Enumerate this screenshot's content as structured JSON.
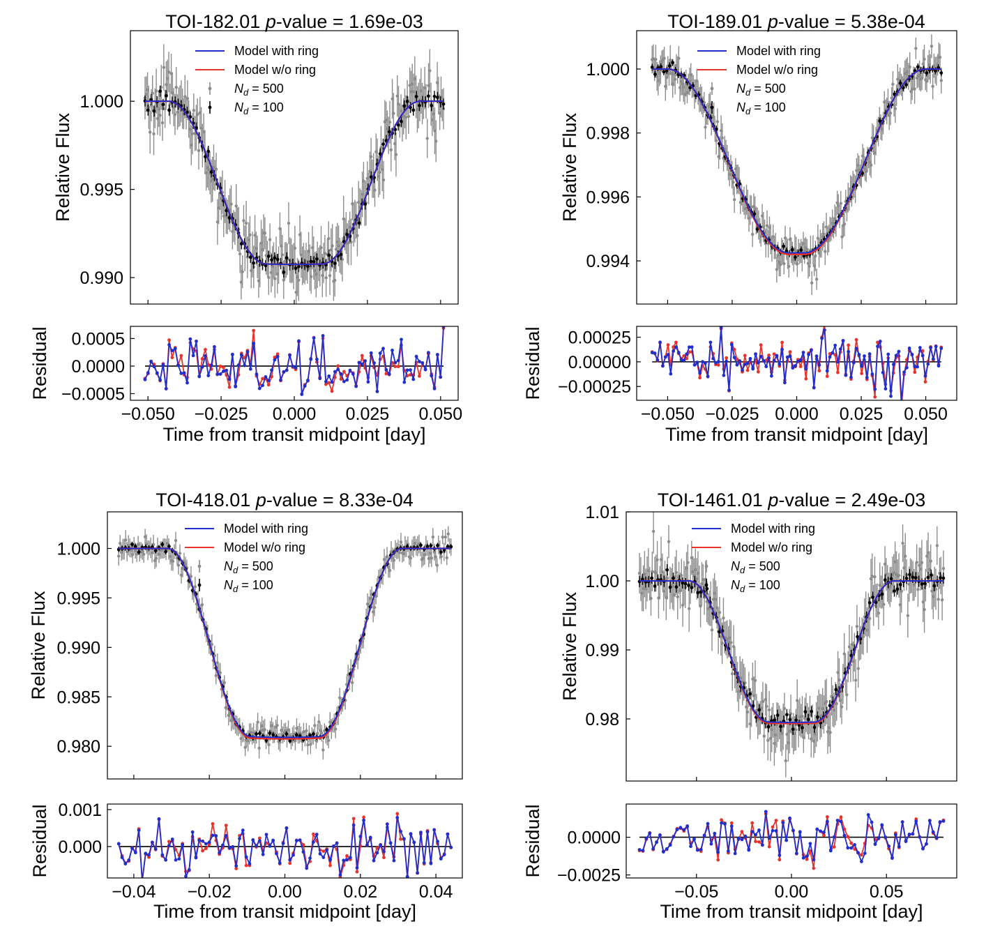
{
  "colors": {
    "model_with_ring": "#1f2ecc",
    "model_without_ring": "#e8332a",
    "data_500": "#8c8c8c",
    "data_100": "#000000"
  },
  "chart_data": [
    {
      "type": "line",
      "id": "toi-182",
      "target": "TOI-182.01",
      "p_label": "p",
      "title_rest": "-value = 1.69e-03",
      "ylabel": "Relative Flux",
      "residual_ylabel": "Residual",
      "xlabel": "Time from transit midpoint [day]",
      "xlim": [
        -0.056,
        0.056
      ],
      "ylim": [
        0.9885,
        1.004
      ],
      "residual_ylim": [
        -0.00062,
        0.00072
      ],
      "xticks": [
        -0.05,
        -0.025,
        0.0,
        0.025,
        0.05
      ],
      "xtick_labels": [
        "−0.050",
        "−0.025",
        "0.000",
        "0.025",
        "0.050"
      ],
      "yticks": [
        0.99,
        0.995,
        1.0
      ],
      "ytick_labels": [
        "0.990",
        "0.995",
        "1.000"
      ],
      "residual_yticks": [
        -0.0005,
        0.0,
        0.0005
      ],
      "residual_ytick_labels": [
        "−0.0005",
        "0.0000",
        "0.0005"
      ],
      "model": {
        "depth": 0.00925,
        "t_contact_outer": 0.043,
        "t_contact_inner": 0.0095,
        "ring_offset": 0.0002
      },
      "data_range": [
        -0.051,
        0.051
      ],
      "noise_500": 0.0011,
      "noise_100": 0.00035,
      "residual_amplitude": 0.00024,
      "n_residual_points": 100,
      "legend": [
        "Model with ring",
        "Model w/o ring",
        "N_d = 500",
        "N_d = 100"
      ]
    },
    {
      "type": "line",
      "id": "toi-189",
      "target": "TOI-189.01",
      "p_label": "p",
      "title_rest": "-value = 5.38e-04",
      "ylabel": "Relative Flux",
      "residual_ylabel": "Residual",
      "xlabel": "Time from transit midpoint [day]",
      "xlim": [
        -0.062,
        0.062
      ],
      "ylim": [
        0.99265,
        1.0012
      ],
      "residual_ylim": [
        -0.00039,
        0.00036
      ],
      "xticks": [
        -0.05,
        -0.025,
        0.0,
        0.025,
        0.05
      ],
      "xtick_labels": [
        "−0.050",
        "−0.025",
        "0.000",
        "0.025",
        "0.050"
      ],
      "yticks": [
        0.994,
        0.996,
        0.998,
        1.0
      ],
      "ytick_labels": [
        "0.994",
        "0.996",
        "0.998",
        "1.000"
      ],
      "residual_yticks": [
        -0.00025,
        0.0,
        0.00025
      ],
      "residual_ytick_labels": [
        "−0.00025",
        "0.00000",
        "0.00025"
      ],
      "model": {
        "depth": 0.00575,
        "t_contact_outer": 0.05,
        "t_contact_inner": 0.003,
        "ring_offset": 0.0
      },
      "data_range": [
        -0.056,
        0.056
      ],
      "noise_500": 0.0004,
      "noise_100": 0.00012,
      "residual_amplitude": 0.00013,
      "n_residual_points": 110,
      "legend": [
        "Model with ring",
        "Model w/o ring",
        "N_d = 500",
        "N_d = 100"
      ]
    },
    {
      "type": "line",
      "id": "toi-418",
      "target": "TOI-418.01",
      "p_label": "p",
      "title_rest": "-value = 8.33e-04",
      "ylabel": "Relative Flux",
      "residual_ylabel": "Residual",
      "xlabel": "Time from transit midpoint [day]",
      "xlim": [
        -0.047,
        0.047
      ],
      "ylim": [
        0.9767,
        1.0037
      ],
      "residual_ylim": [
        -0.00085,
        0.00115
      ],
      "xticks": [
        -0.04,
        -0.02,
        0.0,
        0.02,
        0.04
      ],
      "xtick_labels": [
        "−0.04",
        "−0.02",
        "0.00",
        "0.02",
        "0.04"
      ],
      "yticks": [
        0.98,
        0.985,
        0.99,
        0.995,
        1.0
      ],
      "ytick_labels": [
        "0.980",
        "0.985",
        "0.990",
        "0.995",
        "1.000"
      ],
      "residual_yticks": [
        0.0,
        0.001
      ],
      "residual_ytick_labels": [
        "0.000",
        "0.001"
      ],
      "model": {
        "depth": 0.0191,
        "t_contact_outer": 0.031,
        "t_contact_inner": 0.009,
        "ring_offset": 0.0
      },
      "data_range": [
        -0.044,
        0.044
      ],
      "noise_500": 0.0009,
      "noise_100": 0.0003,
      "residual_amplitude": 0.00035,
      "n_residual_points": 100,
      "legend": [
        "Model with ring",
        "Model w/o ring",
        "N_d = 500",
        "N_d = 100"
      ]
    },
    {
      "type": "line",
      "id": "toi-1461",
      "target": "TOI-1461.01",
      "p_label": "p",
      "title_rest": "-value = 2.49e-03",
      "ylabel": "Relative Flux",
      "residual_ylabel": "Residual",
      "xlabel": "Time from transit midpoint [day]",
      "xlim": [
        -0.087,
        0.087
      ],
      "ylim": [
        0.971,
        1.01
      ],
      "residual_ylim": [
        -0.0027,
        0.0022
      ],
      "xticks": [
        -0.05,
        0.0,
        0.05
      ],
      "xtick_labels": [
        "−0.05",
        "0.00",
        "0.05"
      ],
      "yticks": [
        0.98,
        0.99,
        1.0,
        1.01
      ],
      "ytick_labels": [
        "0.98",
        "0.99",
        "1.00",
        "1.01"
      ],
      "residual_yticks": [
        -0.0025,
        0.0
      ],
      "residual_ytick_labels": [
        "−0.0025",
        "0.0000"
      ],
      "model": {
        "depth": 0.0205,
        "t_contact_outer": 0.054,
        "t_contact_inner": 0.012,
        "ring_offset": 0.0
      },
      "data_range": [
        -0.08,
        0.08
      ],
      "noise_500": 0.0028,
      "noise_100": 0.0009,
      "residual_amplitude": 0.0008,
      "n_residual_points": 90,
      "legend": [
        "Model with ring",
        "Model w/o ring",
        "N_d = 500",
        "N_d = 100"
      ]
    }
  ]
}
